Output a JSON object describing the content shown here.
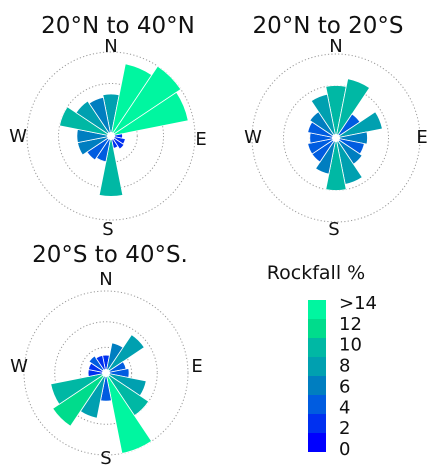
{
  "chart_data": [
    {
      "type": "polar-bar",
      "title": "20°N to 40°N",
      "direction_labels": [
        "N",
        "E",
        "S",
        "W"
      ],
      "bin_width_deg": 22.5,
      "max_value": 16,
      "rings": [
        5,
        10,
        16
      ],
      "bars": [
        {
          "dir_deg": 0,
          "value": 8
        },
        {
          "dir_deg": 22.5,
          "value": 14
        },
        {
          "dir_deg": 45,
          "value": 16
        },
        {
          "dir_deg": 67.5,
          "value": 15
        },
        {
          "dir_deg": 90,
          "value": 2.2
        },
        {
          "dir_deg": 112.5,
          "value": 2.8
        },
        {
          "dir_deg": 135,
          "value": 3
        },
        {
          "dir_deg": 157.5,
          "value": 2.4
        },
        {
          "dir_deg": 180,
          "value": 11.5
        },
        {
          "dir_deg": 202.5,
          "value": 5
        },
        {
          "dir_deg": 225,
          "value": 5.5
        },
        {
          "dir_deg": 247.5,
          "value": 6.5
        },
        {
          "dir_deg": 270,
          "value": 6.5
        },
        {
          "dir_deg": 292.5,
          "value": 10
        },
        {
          "dir_deg": 315,
          "value": 8
        },
        {
          "dir_deg": 337.5,
          "value": 7.5
        }
      ]
    },
    {
      "type": "polar-bar",
      "title": "20°N to 20°S",
      "direction_labels": [
        "N",
        "E",
        "S",
        "W"
      ],
      "bin_width_deg": 22.5,
      "max_value": 16,
      "rings": [
        5,
        10,
        16
      ],
      "bars": [
        {
          "dir_deg": 0,
          "value": 10
        },
        {
          "dir_deg": 22.5,
          "value": 11.5
        },
        {
          "dir_deg": 45,
          "value": 5.5
        },
        {
          "dir_deg": 67.5,
          "value": 9
        },
        {
          "dir_deg": 90,
          "value": 6
        },
        {
          "dir_deg": 112.5,
          "value": 5.5
        },
        {
          "dir_deg": 135,
          "value": 6
        },
        {
          "dir_deg": 157.5,
          "value": 9
        },
        {
          "dir_deg": 180,
          "value": 10
        },
        {
          "dir_deg": 202.5,
          "value": 7
        },
        {
          "dir_deg": 225,
          "value": 5.5
        },
        {
          "dir_deg": 247.5,
          "value": 5.5
        },
        {
          "dir_deg": 270,
          "value": 5
        },
        {
          "dir_deg": 292.5,
          "value": 5.5
        },
        {
          "dir_deg": 315,
          "value": 6
        },
        {
          "dir_deg": 337.5,
          "value": 8.5
        }
      ]
    },
    {
      "type": "polar-bar",
      "title": "20°S to 40°S.",
      "direction_labels": [
        "N",
        "E",
        "S",
        "W"
      ],
      "bin_width_deg": 22.5,
      "max_value": 16,
      "rings": [
        5,
        10,
        16
      ],
      "bars": [
        {
          "dir_deg": 0,
          "value": 3.5
        },
        {
          "dir_deg": 22.5,
          "value": 6
        },
        {
          "dir_deg": 45,
          "value": 9
        },
        {
          "dir_deg": 67.5,
          "value": 4
        },
        {
          "dir_deg": 90,
          "value": 4.5
        },
        {
          "dir_deg": 112.5,
          "value": 8
        },
        {
          "dir_deg": 135,
          "value": 10
        },
        {
          "dir_deg": 157.5,
          "value": 16
        },
        {
          "dir_deg": 180,
          "value": 5.5
        },
        {
          "dir_deg": 202.5,
          "value": 9
        },
        {
          "dir_deg": 225,
          "value": 12.5
        },
        {
          "dir_deg": 247.5,
          "value": 11
        },
        {
          "dir_deg": 270,
          "value": 3.5
        },
        {
          "dir_deg": 292.5,
          "value": 3.5
        },
        {
          "dir_deg": 315,
          "value": 4
        },
        {
          "dir_deg": 337.5,
          "value": 3.5
        }
      ]
    }
  ],
  "legend": {
    "title": "Rockfall %",
    "ticks": [
      ">14",
      "12",
      "10",
      "8",
      "6",
      "4",
      "2",
      "0"
    ],
    "colors": [
      "#00f6a0",
      "#00dc8c",
      "#00b8a4",
      "#00a0b0",
      "#007ec0",
      "#005ce0",
      "#0030f0",
      "#0000ff"
    ],
    "min": 0,
    "max": 14
  }
}
